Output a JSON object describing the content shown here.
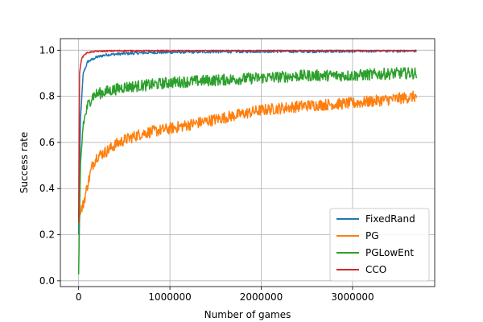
{
  "chart_data": {
    "type": "line",
    "title": "",
    "xlabel": "Number of games",
    "ylabel": "Success rate",
    "xlim": [
      -200000,
      3900000
    ],
    "ylim": [
      -0.025,
      1.05
    ],
    "x_ticks": [
      0,
      1000000,
      2000000,
      3000000
    ],
    "x_tick_labels": [
      "0",
      "1000000",
      "2000000",
      "3000000"
    ],
    "y_ticks": [
      0.0,
      0.2,
      0.4,
      0.6,
      0.8,
      1.0
    ],
    "y_tick_labels": [
      "0.0",
      "0.2",
      "0.4",
      "0.6",
      "0.8",
      "1.0"
    ],
    "grid": true,
    "legend_position": "lower-right",
    "series": [
      {
        "name": "FixedRand",
        "color": "#1f77b4",
        "x": [
          0,
          20000,
          50000,
          100000,
          150000,
          200000,
          300000,
          500000,
          800000,
          1200000,
          2000000,
          3000000,
          3700000
        ],
        "y": [
          0.2,
          0.7,
          0.9,
          0.95,
          0.96,
          0.97,
          0.98,
          0.985,
          0.99,
          0.992,
          0.995,
          0.995,
          0.998
        ]
      },
      {
        "name": "PG",
        "color": "#ff7f0e",
        "x": [
          0,
          20000,
          50000,
          100000,
          150000,
          200000,
          300000,
          400000,
          500000,
          700000,
          1000000,
          1500000,
          2000000,
          2500000,
          3000000,
          3500000,
          3700000
        ],
        "y": [
          0.25,
          0.3,
          0.33,
          0.42,
          0.5,
          0.54,
          0.56,
          0.59,
          0.61,
          0.64,
          0.66,
          0.7,
          0.74,
          0.76,
          0.77,
          0.79,
          0.8
        ]
      },
      {
        "name": "PGLowEnt",
        "color": "#2ca02c",
        "x": [
          0,
          20000,
          50000,
          100000,
          150000,
          200000,
          300000,
          500000,
          800000,
          1000000,
          1500000,
          2000000,
          2500000,
          3000000,
          3500000,
          3700000
        ],
        "y": [
          0.02,
          0.5,
          0.68,
          0.76,
          0.8,
          0.81,
          0.82,
          0.84,
          0.85,
          0.86,
          0.87,
          0.88,
          0.89,
          0.89,
          0.9,
          0.9
        ]
      },
      {
        "name": "CCO",
        "color": "#d62728",
        "x": [
          0,
          10000,
          30000,
          60000,
          100000,
          200000,
          400000,
          1000000,
          2000000,
          3000000,
          3700000
        ],
        "y": [
          0.25,
          0.9,
          0.96,
          0.98,
          0.99,
          0.995,
          0.997,
          0.998,
          0.999,
          0.999,
          1.0
        ]
      }
    ]
  }
}
